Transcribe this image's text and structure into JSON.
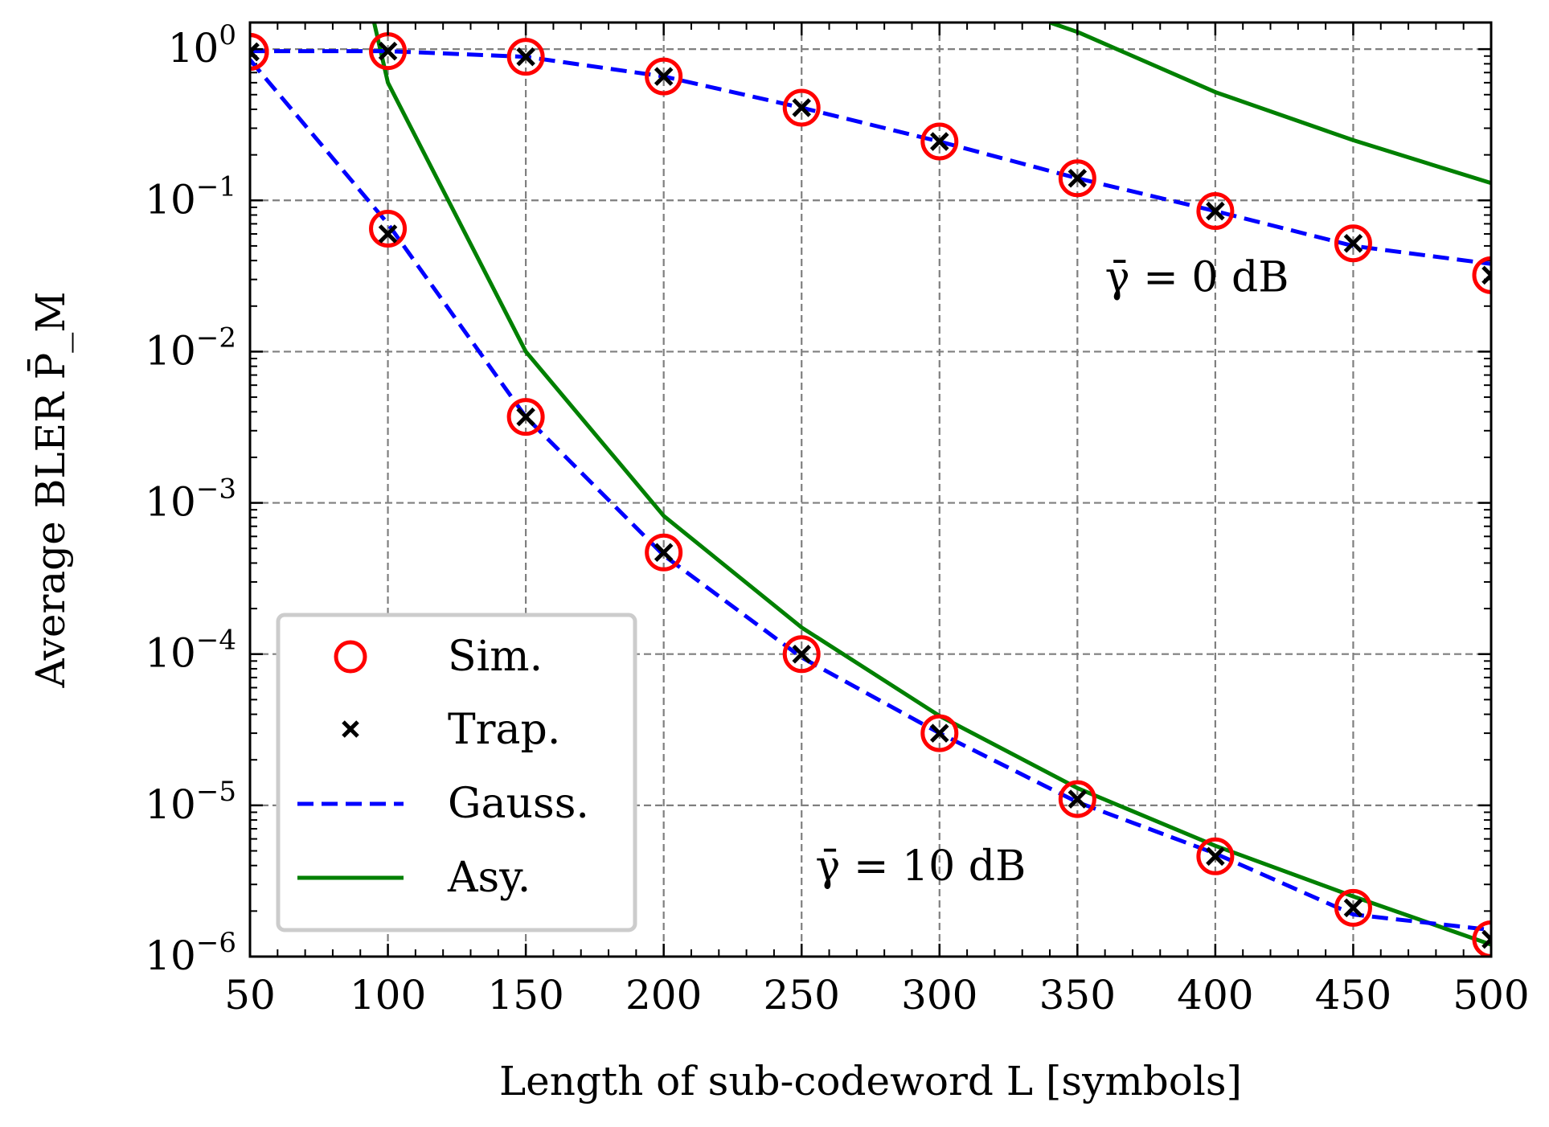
{
  "chart_data": {
    "type": "line",
    "title": "",
    "xlabel": "Length of sub-codeword L [symbols]",
    "ylabel": "Average BLER P̄_M",
    "xlim": [
      50,
      500
    ],
    "ylim": [
      1e-06,
      1.5
    ],
    "yscale": "log",
    "grid": true,
    "legend_position": "bottom-left",
    "xticks": [
      50,
      100,
      150,
      200,
      250,
      300,
      350,
      400,
      450,
      500
    ],
    "xtick_labels": [
      "50",
      "100",
      "150",
      "200",
      "250",
      "300",
      "350",
      "400",
      "450",
      "500"
    ],
    "yticks": [
      1,
      0.1,
      0.01,
      0.001,
      0.0001,
      1e-05,
      1e-06
    ],
    "ytick_labels": [
      {
        "base": "10",
        "exp": "0"
      },
      {
        "base": "10",
        "exp": "−1"
      },
      {
        "base": "10",
        "exp": "−2"
      },
      {
        "base": "10",
        "exp": "−3"
      },
      {
        "base": "10",
        "exp": "−4"
      },
      {
        "base": "10",
        "exp": "−5"
      },
      {
        "base": "10",
        "exp": "−6"
      }
    ],
    "annotations": [
      {
        "text": "γ̄ = 0 dB",
        "x": 360,
        "y": 0.025
      },
      {
        "text": "γ̄ = 10 dB",
        "x": 255,
        "y": 3.2e-06
      }
    ],
    "legend": [
      {
        "label": "Sim.",
        "marker": "circle",
        "color": "#ff0000"
      },
      {
        "label": "Trap.",
        "marker": "x",
        "color": "#000000"
      },
      {
        "label": "Gauss.",
        "line": "dashed",
        "color": "#0000ff"
      },
      {
        "label": "Asy.",
        "line": "solid",
        "color": "#008000"
      }
    ],
    "series": [
      {
        "name": "Sim. (0 dB)",
        "group": "Sim.",
        "kind": "marker-circle",
        "color": "#ff0000",
        "x": [
          50,
          100,
          150,
          200,
          250,
          300,
          350,
          400,
          450,
          500
        ],
        "y": [
          0.96,
          0.97,
          0.89,
          0.66,
          0.41,
          0.245,
          0.14,
          0.085,
          0.052,
          0.032
        ]
      },
      {
        "name": "Trap. (0 dB)",
        "group": "Trap.",
        "kind": "marker-x",
        "color": "#000000",
        "x": [
          50,
          100,
          150,
          200,
          250,
          300,
          350,
          400,
          450,
          500
        ],
        "y": [
          0.96,
          0.97,
          0.89,
          0.66,
          0.41,
          0.245,
          0.14,
          0.085,
          0.052,
          0.032
        ]
      },
      {
        "name": "Gauss. (0 dB)",
        "group": "Gauss.",
        "kind": "line-dashed",
        "color": "#0000ff",
        "x": [
          50,
          100,
          150,
          200,
          250,
          300,
          350,
          400,
          450,
          500
        ],
        "y": [
          0.97,
          0.97,
          0.89,
          0.66,
          0.41,
          0.245,
          0.14,
          0.085,
          0.05,
          0.038
        ]
      },
      {
        "name": "Asy. (0 dB)",
        "group": "Asy.",
        "kind": "line-solid",
        "color": "#008000",
        "x": [
          340,
          350,
          400,
          450,
          500
        ],
        "y": [
          1.5,
          1.3,
          0.52,
          0.25,
          0.13
        ]
      },
      {
        "name": "Sim. (10 dB)",
        "group": "Sim.",
        "kind": "marker-circle",
        "color": "#ff0000",
        "x": [
          50,
          100,
          150,
          200,
          250,
          300,
          350,
          400,
          450,
          500
        ],
        "y": [
          0.96,
          0.065,
          0.0037,
          0.00047,
          0.0001,
          3e-05,
          1.1e-05,
          4.6e-06,
          2.1e-06,
          1.3e-06
        ]
      },
      {
        "name": "Trap. (10 dB)",
        "group": "Trap.",
        "kind": "marker-x",
        "color": "#000000",
        "x": [
          50,
          100,
          150,
          200,
          250,
          300,
          350,
          400,
          450,
          500
        ],
        "y": [
          0.96,
          0.06,
          0.0037,
          0.00047,
          0.0001,
          3e-05,
          1.1e-05,
          4.6e-06,
          2.1e-06,
          1.3e-06
        ]
      },
      {
        "name": "Gauss. (10 dB)",
        "group": "Gauss.",
        "kind": "line-dashed",
        "color": "#0000ff",
        "x": [
          50,
          100,
          150,
          200,
          250,
          300,
          350,
          400,
          450,
          500
        ],
        "y": [
          0.85,
          0.07,
          0.0037,
          0.00045,
          9.5e-05,
          3e-05,
          1.05e-05,
          4.8e-06,
          1.9e-06,
          1.5e-06
        ]
      },
      {
        "name": "Asy. (10 dB)",
        "group": "Asy.",
        "kind": "line-solid",
        "color": "#008000",
        "x": [
          95,
          100,
          150,
          200,
          250,
          300,
          350,
          400,
          450,
          500
        ],
        "y": [
          1.5,
          0.6,
          0.01,
          0.00082,
          0.00015,
          3.9e-05,
          1.3e-05,
          5.4e-06,
          2.5e-06,
          1.2e-06
        ]
      }
    ]
  }
}
